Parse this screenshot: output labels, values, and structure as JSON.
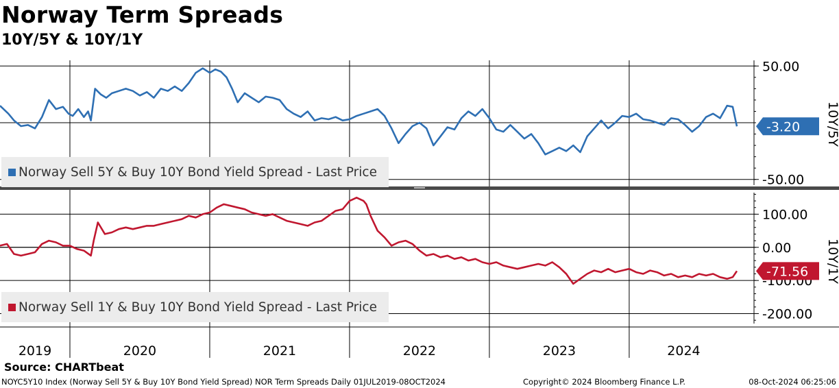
{
  "header": {
    "title": "Norway Term Spreads",
    "subtitle": "10Y/5Y & 10Y/1Y"
  },
  "legend": {
    "top": "Norway Sell 5Y & Buy 10Y Bond Yield Spread - Last Price",
    "bottom": "Norway Sell 1Y & Buy 10Y Bond Yield Spread - Last Price"
  },
  "colors": {
    "top_series": "#2e6fb3",
    "bottom_series": "#c0172f"
  },
  "footer": {
    "source": "Source: CHARTbeat",
    "security": "NOYC5Y10 Index (Norway Sell 5Y & Buy 10Y Bond Yield Spread) NOR Term Spreads  Daily 01JUL2019-08OCT2024",
    "copyright": "Copyright© 2024 Bloomberg Finance L.P.",
    "timestamp": "08-Oct-2024 06:25:06"
  },
  "chart_data": [
    {
      "type": "line",
      "panel": "top",
      "axis_label": "10Y/5Y",
      "ylim": [
        -55,
        55
      ],
      "y_ticks": [
        50,
        -50
      ],
      "y_tick_labels": [
        "50.00",
        "-50.00"
      ],
      "zero_line": 0,
      "last_value": -3.2,
      "last_label": "-3.20",
      "x_start": 2019.5,
      "x_end": 2024.77,
      "years": [
        "2019",
        "2020",
        "2021",
        "2022",
        "2023",
        "2024"
      ],
      "series": [
        {
          "name": "Norway Sell 5Y & Buy 10Y Bond Yield Spread - Last Price",
          "x": [
            2019.5,
            2019.56,
            2019.6,
            2019.65,
            2019.7,
            2019.75,
            2019.8,
            2019.85,
            2019.9,
            2019.95,
            2019.99,
            2020.02,
            2020.06,
            2020.1,
            2020.13,
            2020.15,
            2020.18,
            2020.22,
            2020.26,
            2020.3,
            2020.35,
            2020.4,
            2020.45,
            2020.5,
            2020.55,
            2020.6,
            2020.65,
            2020.7,
            2020.75,
            2020.8,
            2020.85,
            2020.9,
            2020.95,
            2021.0,
            2021.04,
            2021.08,
            2021.12,
            2021.16,
            2021.2,
            2021.25,
            2021.3,
            2021.35,
            2021.4,
            2021.45,
            2021.5,
            2021.55,
            2021.6,
            2021.65,
            2021.7,
            2021.75,
            2021.8,
            2021.85,
            2021.9,
            2021.95,
            2022.0,
            2022.05,
            2022.1,
            2022.15,
            2022.2,
            2022.25,
            2022.3,
            2022.35,
            2022.4,
            2022.45,
            2022.5,
            2022.55,
            2022.6,
            2022.65,
            2022.7,
            2022.75,
            2022.8,
            2022.85,
            2022.9,
            2022.95,
            2023.0,
            2023.05,
            2023.1,
            2023.15,
            2023.2,
            2023.25,
            2023.3,
            2023.35,
            2023.4,
            2023.45,
            2023.5,
            2023.55,
            2023.6,
            2023.65,
            2023.7,
            2023.75,
            2023.8,
            2023.85,
            2023.9,
            2023.95,
            2024.0,
            2024.05,
            2024.1,
            2024.15,
            2024.2,
            2024.25,
            2024.3,
            2024.35,
            2024.4,
            2024.45,
            2024.5,
            2024.55,
            2024.6,
            2024.65,
            2024.7,
            2024.74,
            2024.77
          ],
          "values": [
            15,
            8,
            2,
            -3,
            -2,
            -5,
            5,
            20,
            12,
            14,
            8,
            6,
            12,
            5,
            10,
            2,
            30,
            25,
            22,
            26,
            28,
            30,
            28,
            24,
            27,
            22,
            30,
            28,
            32,
            28,
            35,
            44,
            48,
            44,
            47,
            45,
            40,
            30,
            18,
            26,
            22,
            18,
            23,
            22,
            20,
            12,
            8,
            5,
            10,
            2,
            4,
            3,
            5,
            2,
            3,
            6,
            8,
            10,
            12,
            6,
            -5,
            -18,
            -10,
            -3,
            0,
            -5,
            -20,
            -12,
            -4,
            -6,
            4,
            10,
            6,
            12,
            4,
            -6,
            -8,
            -2,
            -8,
            -14,
            -10,
            -18,
            -28,
            -25,
            -22,
            -25,
            -20,
            -26,
            -12,
            -5,
            2,
            -5,
            0,
            6,
            5,
            8,
            3,
            2,
            0,
            -2,
            4,
            3,
            -2,
            -8,
            -3,
            5,
            8,
            4,
            15,
            14,
            -3.2
          ]
        }
      ]
    },
    {
      "type": "line",
      "panel": "bottom",
      "axis_label": "10Y/1Y",
      "ylim": [
        -230,
        165
      ],
      "y_ticks": [
        100,
        0,
        -100,
        -200
      ],
      "y_tick_labels": [
        "100.00",
        "0.00",
        "-100.00",
        "-200.00"
      ],
      "zero_line": 0,
      "last_value": -71.56,
      "last_label": "-71.56",
      "x_start": 2019.5,
      "x_end": 2024.77,
      "years": [
        "2019",
        "2020",
        "2021",
        "2022",
        "2023",
        "2024"
      ],
      "series": [
        {
          "name": "Norway Sell 1Y & Buy 10Y Bond Yield Spread - Last Price",
          "x": [
            2019.5,
            2019.55,
            2019.6,
            2019.65,
            2019.7,
            2019.75,
            2019.8,
            2019.85,
            2019.9,
            2019.95,
            2020.0,
            2020.05,
            2020.1,
            2020.15,
            2020.17,
            2020.2,
            2020.25,
            2020.3,
            2020.35,
            2020.4,
            2020.45,
            2020.5,
            2020.55,
            2020.6,
            2020.65,
            2020.7,
            2020.75,
            2020.8,
            2020.85,
            2020.9,
            2020.95,
            2021.0,
            2021.05,
            2021.1,
            2021.15,
            2021.2,
            2021.25,
            2021.3,
            2021.35,
            2021.4,
            2021.45,
            2021.5,
            2021.55,
            2021.6,
            2021.65,
            2021.7,
            2021.75,
            2021.8,
            2021.85,
            2021.9,
            2021.95,
            2022.0,
            2022.05,
            2022.1,
            2022.12,
            2022.15,
            2022.2,
            2022.25,
            2022.3,
            2022.35,
            2022.4,
            2022.45,
            2022.5,
            2022.55,
            2022.6,
            2022.65,
            2022.7,
            2022.75,
            2022.8,
            2022.85,
            2022.9,
            2022.95,
            2023.0,
            2023.05,
            2023.1,
            2023.15,
            2023.2,
            2023.25,
            2023.3,
            2023.35,
            2023.4,
            2023.45,
            2023.5,
            2023.55,
            2023.6,
            2023.65,
            2023.7,
            2023.75,
            2023.8,
            2023.85,
            2023.9,
            2023.95,
            2024.0,
            2024.05,
            2024.1,
            2024.15,
            2024.2,
            2024.25,
            2024.3,
            2024.35,
            2024.4,
            2024.45,
            2024.5,
            2024.55,
            2024.6,
            2024.65,
            2024.7,
            2024.74,
            2024.77
          ],
          "values": [
            5,
            10,
            -20,
            -25,
            -20,
            -15,
            10,
            20,
            15,
            5,
            5,
            -5,
            -10,
            -25,
            20,
            75,
            40,
            45,
            55,
            60,
            55,
            60,
            65,
            65,
            70,
            75,
            80,
            85,
            95,
            90,
            100,
            105,
            120,
            130,
            125,
            120,
            115,
            105,
            100,
            95,
            100,
            90,
            80,
            75,
            70,
            65,
            75,
            80,
            95,
            110,
            115,
            140,
            150,
            140,
            130,
            95,
            50,
            30,
            5,
            15,
            20,
            10,
            -10,
            -25,
            -20,
            -30,
            -25,
            -35,
            -30,
            -40,
            -35,
            -45,
            -50,
            -45,
            -55,
            -60,
            -65,
            -60,
            -55,
            -50,
            -55,
            -45,
            -60,
            -80,
            -110,
            -95,
            -80,
            -70,
            -75,
            -65,
            -75,
            -70,
            -65,
            -75,
            -80,
            -70,
            -75,
            -85,
            -80,
            -90,
            -85,
            -90,
            -80,
            -85,
            -80,
            -90,
            -95,
            -90,
            -71.56
          ]
        }
      ]
    }
  ]
}
